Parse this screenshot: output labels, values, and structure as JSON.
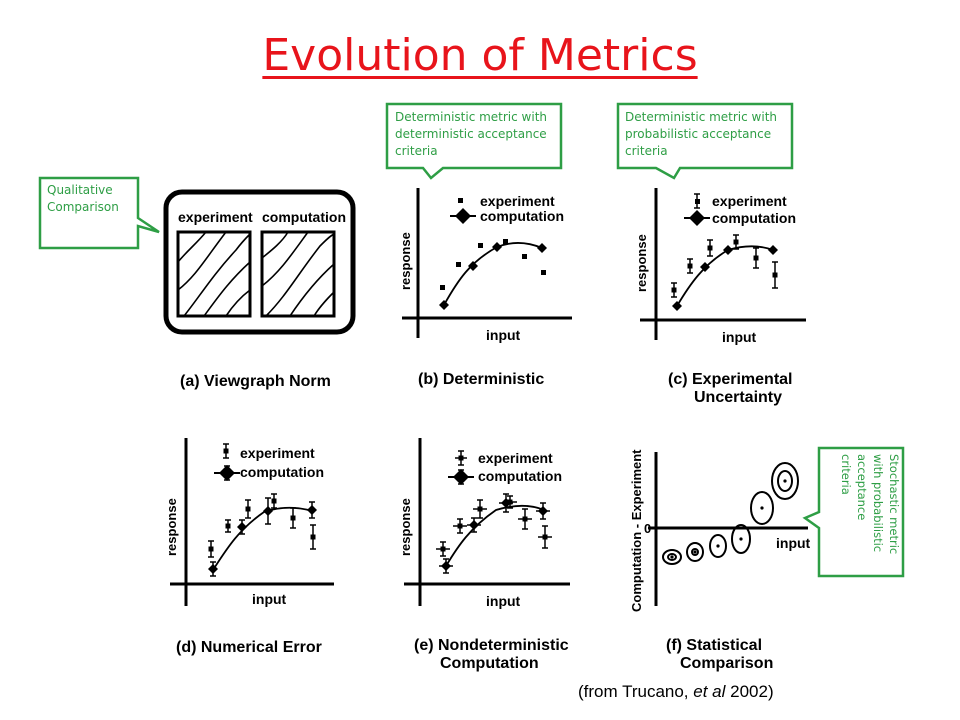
{
  "title": "Evolution of Metrics",
  "callouts": {
    "qualitative": "Qualitative\nComparison",
    "det_det": "Deterministic metric with\ndeterministic acceptance\ncriteria",
    "det_prob": "Deterministic metric with\nprobabilistic acceptance\ncriteria",
    "stochastic": "Stochastic metric\nwith probabilistic\nacceptance\ncriteria"
  },
  "legend": {
    "experiment": "experiment",
    "computation": "computation"
  },
  "axes": {
    "response": "response",
    "input": "input",
    "diff": "Computation - Experiment",
    "zero": "0"
  },
  "panels": {
    "a": "(a) Viewgraph Norm",
    "b": "(b) Deterministic",
    "c1": "(c) Experimental",
    "c2": "Uncertainty",
    "d": "(d) Numerical Error",
    "e1": "(e) Nondeterministic",
    "e2": "Computation",
    "f1": "(f) Statistical",
    "f2": "Comparison"
  },
  "citation": {
    "pre": "(from Trucano, ",
    "italic": "et al",
    "post": " 2002)"
  },
  "colors": {
    "title": "#e8141b",
    "callout": "#2e9e45"
  }
}
